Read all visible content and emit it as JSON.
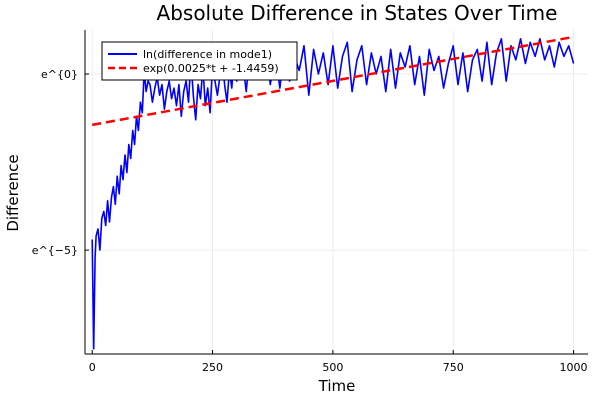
{
  "chart_data": {
    "type": "line",
    "title": "Absolute Difference in States Over Time",
    "xlabel": "Time",
    "ylabel": "Difference",
    "xlim": [
      -15,
      1030
    ],
    "ylim": [
      -7.95,
      1.25
    ],
    "y_scale": "log",
    "grid": true,
    "legend_position": "top-left",
    "x_ticks": [
      {
        "value": 0,
        "label": "0"
      },
      {
        "value": 250,
        "label": "250"
      },
      {
        "value": 500,
        "label": "500"
      },
      {
        "value": 750,
        "label": "750"
      },
      {
        "value": 1000,
        "label": "1000"
      }
    ],
    "y_ticks": [
      {
        "value": 0,
        "label": "e^{0}"
      },
      {
        "value": -5,
        "label": "e^{−5}"
      }
    ],
    "series": [
      {
        "name": "ln(difference in mode1)",
        "color": "#0000ff",
        "style": "solid",
        "x": [
          0,
          3,
          6,
          8,
          12,
          16,
          20,
          24,
          28,
          32,
          36,
          40,
          44,
          48,
          52,
          56,
          60,
          64,
          68,
          72,
          76,
          80,
          84,
          88,
          92,
          96,
          100,
          104,
          108,
          112,
          116,
          120,
          125,
          130,
          135,
          140,
          145,
          150,
          155,
          160,
          165,
          170,
          175,
          180,
          185,
          190,
          195,
          200,
          205,
          210,
          215,
          220,
          225,
          230,
          235,
          240,
          245,
          250,
          255,
          260,
          265,
          270,
          275,
          280,
          285,
          290,
          295,
          300,
          310,
          320,
          330,
          340,
          350,
          360,
          370,
          380,
          390,
          400,
          410,
          420,
          430,
          440,
          450,
          460,
          470,
          480,
          490,
          500,
          510,
          520,
          530,
          540,
          550,
          560,
          570,
          580,
          590,
          600,
          610,
          620,
          630,
          640,
          650,
          660,
          670,
          680,
          690,
          700,
          710,
          720,
          730,
          740,
          750,
          760,
          770,
          780,
          790,
          800,
          810,
          820,
          830,
          840,
          850,
          860,
          870,
          880,
          890,
          900,
          910,
          920,
          930,
          940,
          950,
          960,
          970,
          980,
          990,
          1000
        ],
        "y": [
          -4.7,
          -7.8,
          -5.2,
          -4.6,
          -4.4,
          -5.0,
          -4.1,
          -3.9,
          -4.3,
          -3.6,
          -4.2,
          -3.5,
          -3.2,
          -3.7,
          -2.9,
          -3.4,
          -2.6,
          -3.0,
          -2.3,
          -2.8,
          -2.0,
          -2.4,
          -1.6,
          -2.0,
          -1.2,
          -1.6,
          -0.8,
          -1.1,
          0.1,
          -0.5,
          -0.2,
          -0.3,
          -0.8,
          -0.4,
          -0.1,
          -0.6,
          -0.3,
          -1.0,
          -0.5,
          -0.2,
          -0.7,
          -0.4,
          -0.9,
          -0.3,
          -1.2,
          -0.5,
          -0.2,
          -0.8,
          0.4,
          -0.6,
          -1.3,
          -0.3,
          -0.7,
          0.2,
          -0.9,
          -0.4,
          -1.1,
          0.3,
          -0.2,
          -0.6,
          -0.1,
          0.5,
          -0.3,
          -0.8,
          0.1,
          -0.4,
          0.6,
          -0.2,
          0.7,
          -0.5,
          0.9,
          -0.1,
          0.3,
          0.8,
          -0.3,
          0.6,
          -0.4,
          0.9,
          -0.2,
          0.5,
          0.1,
          0.8,
          -0.6,
          0.7,
          0.0,
          0.6,
          -0.3,
          0.8,
          -0.4,
          0.5,
          0.9,
          -0.5,
          0.4,
          0.8,
          -0.3,
          0.6,
          0.0,
          0.5,
          -0.5,
          0.7,
          -0.4,
          0.6,
          0.2,
          0.8,
          -0.3,
          0.5,
          -0.6,
          0.7,
          0.1,
          0.5,
          -0.4,
          0.3,
          0.8,
          -0.3,
          0.6,
          -0.5,
          0.4,
          0.7,
          -0.2,
          0.9,
          -0.3,
          0.6,
          1.0,
          -0.2,
          0.8,
          0.4,
          1.0,
          0.3,
          0.9,
          0.5,
          1.0,
          0.4,
          0.8,
          0.2,
          0.9,
          0.5,
          0.8,
          0.3
        ]
      },
      {
        "name": "exp(0.0025*t + -1.4459)",
        "color": "#ff0000",
        "style": "dashed",
        "x": [
          0,
          1000
        ],
        "y": [
          -1.4459,
          1.0541
        ]
      }
    ]
  }
}
